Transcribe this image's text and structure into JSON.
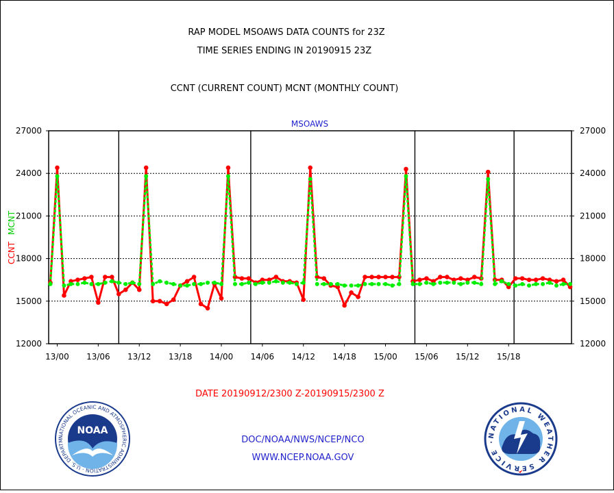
{
  "header": {
    "title_line1": "RAP MODEL MSOAWS DATA COUNTS for 23Z",
    "title_line2": "TIME SERIES ENDING IN 20190915 23Z",
    "subtitle": "CCNT (CURRENT COUNT) MCNT (MONTHLY COUNT)"
  },
  "chart_data": {
    "type": "line",
    "title": "MSOAWS",
    "ylabel_ccnt": "CCNT",
    "ylabel_mcnt": "MCNT",
    "xlabel": "DATE 20190912/2300 Z-20190915/2300 Z",
    "ylim": [
      12000,
      27000
    ],
    "y_ticks": [
      "12000",
      "15000",
      "18000",
      "21000",
      "24000",
      "27000"
    ],
    "x_tick_labels": [
      "13/00",
      "13/06",
      "13/12",
      "13/18",
      "14/00",
      "14/06",
      "14/12",
      "14/18",
      "15/00",
      "15/06",
      "15/12",
      "15/18"
    ],
    "x_tick_hours": [
      1,
      7,
      13,
      19,
      25,
      31,
      37,
      43,
      49,
      55,
      61,
      67
    ],
    "day_boundary_hours": [
      10,
      29.3,
      53.3,
      67.8
    ],
    "grid": true,
    "colors": {
      "ccnt": "#ff0000",
      "mcnt": "#00ee00",
      "title": "#2222cc",
      "xlabel": "#ff0000"
    },
    "series": [
      {
        "name": "CCNT",
        "color": "#ff0000",
        "values": [
          16300,
          24400,
          15400,
          16400,
          16500,
          16600,
          16700,
          14900,
          16700,
          16700,
          15500,
          15800,
          16300,
          15800,
          24400,
          15000,
          15000,
          14800,
          15100,
          16100,
          16400,
          16700,
          14800,
          14500,
          16200,
          15200,
          24400,
          16700,
          16600,
          16600,
          16300,
          16500,
          16500,
          16700,
          16400,
          16400,
          16300,
          15100,
          24400,
          16700,
          16600,
          16100,
          16000,
          14700,
          15600,
          15300,
          16700,
          16700,
          16700,
          16700,
          16700,
          16700,
          24300,
          16400,
          16500,
          16600,
          16400,
          16700,
          16700,
          16500,
          16600,
          16500,
          16700,
          16600,
          24100,
          16500,
          16500,
          16000,
          16600,
          16600,
          16500,
          16500,
          16600,
          16500,
          16400,
          16500,
          16000
        ]
      },
      {
        "name": "MCNT",
        "color": "#00ee00",
        "values": [
          16200,
          23800,
          16100,
          16200,
          16200,
          16300,
          16200,
          16200,
          16300,
          16400,
          16300,
          16200,
          16300,
          16200,
          23800,
          16200,
          16400,
          16300,
          16200,
          16100,
          16100,
          16200,
          16200,
          16300,
          16300,
          16200,
          23800,
          16200,
          16200,
          16300,
          16200,
          16300,
          16300,
          16400,
          16300,
          16300,
          16200,
          16300,
          23600,
          16200,
          16200,
          16200,
          16200,
          16100,
          16100,
          16100,
          16200,
          16200,
          16200,
          16200,
          16100,
          16200,
          23800,
          16200,
          16200,
          16300,
          16200,
          16300,
          16300,
          16300,
          16200,
          16300,
          16300,
          16200,
          23600,
          16200,
          16400,
          16200,
          16100,
          16200,
          16100,
          16200,
          16200,
          16300,
          16100,
          16200,
          16200
        ]
      }
    ]
  },
  "footer": {
    "org_line1": "DOC/NOAA/NWS/NCEP/NCO",
    "org_line2": "WWW.NCEP.NOAA.GOV"
  },
  "logos": {
    "noaa": {
      "center": "NOAA",
      "ring_text": "NATIONAL OCEANIC AND ATMOSPHERIC ADMINISTRATION · U.S. DEPARTMENT OF COMMERCE ·"
    },
    "nws": {
      "ring_text": "NATIONAL WEATHER SERVICE ·"
    }
  }
}
